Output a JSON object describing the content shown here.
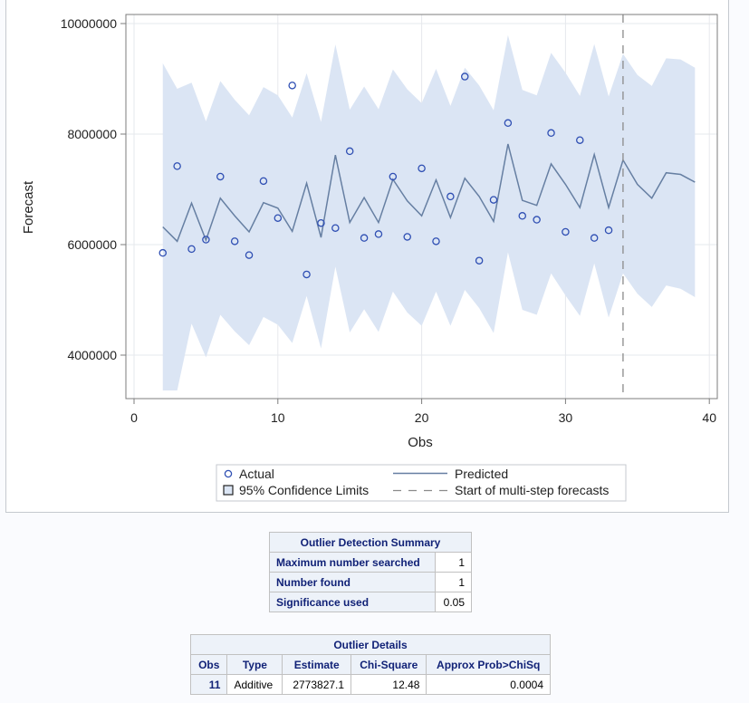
{
  "chart_data": {
    "type": "line",
    "title": "",
    "xlabel": "Obs",
    "ylabel": "Forecast",
    "xlim": [
      -1,
      41
    ],
    "ylim": [
      3200000,
      10150000
    ],
    "x_ticks": [
      0,
      10,
      20,
      30,
      40
    ],
    "x_tick_labels": [
      "0",
      "10",
      "20",
      "30",
      "40"
    ],
    "y_ticks": [
      4000000,
      6000000,
      8000000,
      10000000
    ],
    "y_tick_labels": [
      "4000000",
      "6000000",
      "8000000",
      "10000000"
    ],
    "grid": true,
    "legend_position": "bottom",
    "forecast_start_obs": 34,
    "series": [
      {
        "name": "Actual",
        "kind": "scatter",
        "color": "#2f4fb3",
        "x": [
          2,
          3,
          4,
          5,
          6,
          7,
          8,
          9,
          10,
          11,
          12,
          13,
          14,
          15,
          16,
          17,
          18,
          19,
          20,
          21,
          22,
          23,
          24,
          25,
          26,
          27,
          28,
          29,
          30,
          31,
          32,
          33
        ],
        "values": [
          5850000,
          7420000,
          5920000,
          6090000,
          7230000,
          6060000,
          5810000,
          7150000,
          6480000,
          8880000,
          5460000,
          6390000,
          6300000,
          7690000,
          6120000,
          6190000,
          7230000,
          6140000,
          7380000,
          6060000,
          6870000,
          9040000,
          5710000,
          6810000,
          8200000,
          6520000,
          6450000,
          8020000,
          6230000,
          7890000,
          6120000,
          6260000
        ]
      },
      {
        "name": "Predicted",
        "kind": "line",
        "color": "#667fa2",
        "x": [
          2,
          3,
          4,
          5,
          6,
          7,
          8,
          9,
          10,
          11,
          12,
          13,
          14,
          15,
          16,
          17,
          18,
          19,
          20,
          21,
          22,
          23,
          24,
          25,
          26,
          27,
          28,
          29,
          30,
          31,
          32,
          33,
          34,
          35,
          36,
          37,
          38,
          39
        ],
        "values": [
          6320000,
          6060000,
          6750000,
          6080000,
          6840000,
          6520000,
          6230000,
          6760000,
          6660000,
          6240000,
          7110000,
          6130000,
          7620000,
          6400000,
          6850000,
          6400000,
          7180000,
          6790000,
          6520000,
          7170000,
          6490000,
          7200000,
          6870000,
          6420000,
          7820000,
          6800000,
          6710000,
          7460000,
          7090000,
          6670000,
          7630000,
          6670000,
          7530000,
          7090000,
          6840000,
          7300000,
          7270000,
          7130000
        ]
      },
      {
        "name": "95% Confidence Limits",
        "kind": "band",
        "color": "#dbe5f4",
        "x": [
          2,
          3,
          4,
          5,
          6,
          7,
          8,
          9,
          10,
          11,
          12,
          13,
          14,
          15,
          16,
          17,
          18,
          19,
          20,
          21,
          22,
          23,
          24,
          25,
          26,
          27,
          28,
          29,
          30,
          31,
          32,
          33,
          34,
          35,
          36,
          37,
          38,
          39
        ],
        "upper": [
          9280000,
          8820000,
          8930000,
          8230000,
          8960000,
          8620000,
          8340000,
          8850000,
          8700000,
          8300000,
          9100000,
          8220000,
          9620000,
          8440000,
          8860000,
          8450000,
          9170000,
          8810000,
          8560000,
          9180000,
          8510000,
          9200000,
          8880000,
          8430000,
          9790000,
          8800000,
          8700000,
          9470000,
          9110000,
          8690000,
          9630000,
          8680000,
          9450000,
          9070000,
          8870000,
          9370000,
          9350000,
          9200000
        ],
        "lower": [
          3360000,
          3360000,
          4570000,
          3960000,
          4730000,
          4430000,
          4180000,
          4690000,
          4550000,
          4220000,
          5070000,
          4120000,
          5600000,
          4410000,
          4830000,
          4420000,
          5150000,
          4770000,
          4530000,
          5150000,
          4530000,
          5180000,
          4850000,
          4400000,
          5860000,
          4820000,
          4730000,
          5480000,
          5080000,
          4710000,
          5660000,
          4680000,
          5480000,
          5110000,
          4870000,
          5260000,
          5200000,
          5050000
        ]
      }
    ]
  },
  "legend": {
    "actual": "Actual",
    "predicted": "Predicted",
    "confidence": "95% Confidence Limits",
    "forecast_start": "Start of multi-step forecasts"
  },
  "outlier_summary": {
    "title": "Outlier Detection Summary",
    "rows": [
      {
        "label": "Maximum number searched",
        "value": "1"
      },
      {
        "label": "Number found",
        "value": "1"
      },
      {
        "label": "Significance used",
        "value": "0.05"
      }
    ]
  },
  "outlier_details": {
    "title": "Outlier Details",
    "columns": [
      "Obs",
      "Type",
      "Estimate",
      "Chi-Square",
      "Approx Prob>ChiSq"
    ],
    "rows": [
      {
        "obs": "11",
        "type": "Additive",
        "estimate": "2773827.1",
        "chisq": "12.48",
        "prob": "0.0004"
      }
    ]
  },
  "colors": {
    "band": "#dbe5f4",
    "predicted": "#667fa2",
    "actual": "#2f4fb3",
    "header_text": "#112277",
    "header_bg": "#edf2f9"
  }
}
